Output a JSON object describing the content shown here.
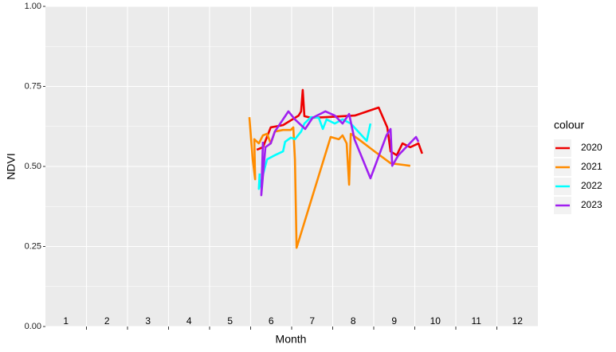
{
  "chart_data": {
    "type": "line",
    "xlabel": "Month",
    "ylabel": "NDVI",
    "legend_title": "colour",
    "xlim": [
      0.5,
      12.5
    ],
    "xticks": [
      1.5,
      2.5,
      3.5,
      4.5,
      5.5,
      6.5,
      7.5,
      8.5,
      9.5,
      10.5,
      11.5
    ],
    "month_labels": [
      1,
      2,
      3,
      4,
      5,
      6,
      7,
      8,
      9,
      10,
      11,
      12
    ],
    "ylim": [
      0,
      1
    ],
    "yticks": [
      {
        "value": 0,
        "label": "0.00"
      },
      {
        "value": 0.25,
        "label": "0.25"
      },
      {
        "value": 0.5,
        "label": "0.50"
      },
      {
        "value": 0.75,
        "label": "0.75"
      },
      {
        "value": 1,
        "label": "1.00"
      }
    ],
    "grid": true,
    "legend_position": "right",
    "series": [
      {
        "name": "2020",
        "color": "#ee0000",
        "x": [
          5.65,
          5.8,
          5.99,
          6.29,
          6.67,
          6.73,
          6.77,
          6.81,
          6.97,
          7.35,
          8.04,
          8.62,
          8.83,
          8.91,
          9.06,
          9.2,
          9.39,
          9.59,
          9.68
        ],
        "values": [
          0.552,
          0.56,
          0.622,
          0.629,
          0.659,
          0.672,
          0.739,
          0.657,
          0.652,
          0.654,
          0.659,
          0.684,
          0.622,
          0.547,
          0.535,
          0.572,
          0.56,
          0.572,
          0.54
        ]
      },
      {
        "name": "2021",
        "color": "#ff8c00",
        "x": [
          5.47,
          5.55,
          5.61,
          5.59,
          5.7,
          5.8,
          5.9,
          5.99,
          6.09,
          6.29,
          6.48,
          6.54,
          6.58,
          6.62,
          7.45,
          7.65,
          7.74,
          7.84,
          7.9,
          7.94,
          8.13,
          8.52,
          8.91,
          9.39
        ],
        "values": [
          0.654,
          0.522,
          0.46,
          0.585,
          0.572,
          0.597,
          0.602,
          0.572,
          0.609,
          0.614,
          0.614,
          0.622,
          0.522,
          0.246,
          0.592,
          0.585,
          0.597,
          0.572,
          0.443,
          0.602,
          0.585,
          0.547,
          0.51,
          0.502
        ]
      },
      {
        "name": "2022",
        "color": "#00ffff",
        "x": [
          5.72,
          5.7,
          5.8,
          5.9,
          6.09,
          6.29,
          6.34,
          6.48,
          6.58,
          6.73,
          6.81,
          6.97,
          7.16,
          7.26,
          7.35,
          7.55,
          7.74,
          7.94,
          8.33,
          8.42
        ],
        "values": [
          0.478,
          0.43,
          0.473,
          0.522,
          0.535,
          0.547,
          0.577,
          0.59,
          0.585,
          0.609,
          0.634,
          0.654,
          0.652,
          0.617,
          0.647,
          0.634,
          0.647,
          0.634,
          0.58,
          0.634
        ]
      },
      {
        "name": "2023",
        "color": "#a020f0",
        "x": [
          5.8,
          5.76,
          5.86,
          5.99,
          6.09,
          6.29,
          6.42,
          6.58,
          6.83,
          7.01,
          7.32,
          7.55,
          7.74,
          7.9,
          8.03,
          8.42,
          8.81,
          8.91,
          8.95,
          9.1,
          9.53,
          9.59
        ],
        "values": [
          0.577,
          0.41,
          0.56,
          0.572,
          0.609,
          0.647,
          0.672,
          0.647,
          0.617,
          0.652,
          0.672,
          0.659,
          0.634,
          0.664,
          0.585,
          0.463,
          0.597,
          0.617,
          0.502,
          0.535,
          0.592,
          0.577
        ]
      }
    ]
  }
}
